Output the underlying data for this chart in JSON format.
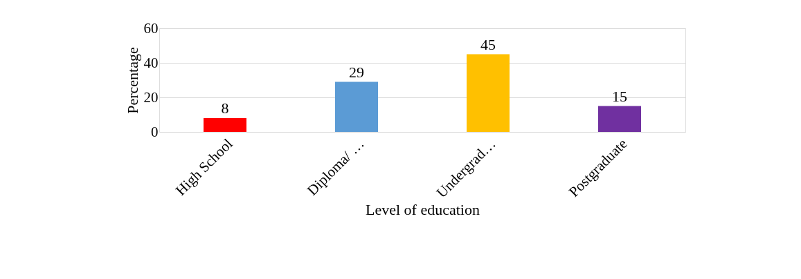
{
  "chart_data": {
    "type": "bar",
    "xlabel": "Level of education",
    "ylabel": "Percentage",
    "categories": [
      "High School",
      "Diploma/ …",
      "Undergrad…",
      "Postgraduate"
    ],
    "values": [
      8,
      29,
      45,
      15
    ],
    "colors": [
      "#ff0000",
      "#5b9bd5",
      "#ffc000",
      "#7030a0"
    ],
    "ylim": [
      0,
      60
    ],
    "yticks": [
      0,
      20,
      40,
      60
    ],
    "grid": "y",
    "data_labels": true
  }
}
